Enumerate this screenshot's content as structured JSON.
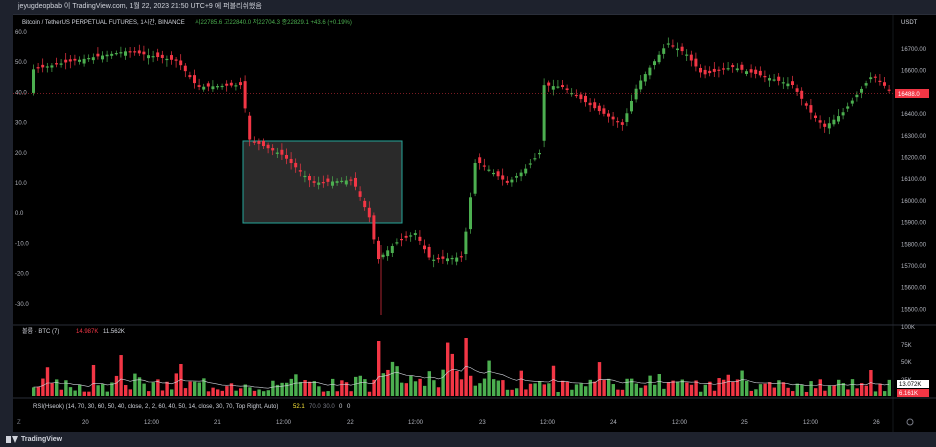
{
  "header": {
    "publish_line": "jeyugdeopbab 이 TradingView.com, 1월 22, 2023 21:50 UTC+9 에 퍼블리쉬했음"
  },
  "legend": {
    "symbol": "Bitcoin / TetherUS PERPETUAL FUTURES, 1시간, BINANCE",
    "ohlc": "시22785.6  고22840.0  저22704.3  종22829.1  +43.6 (+0.19%)"
  },
  "colors": {
    "up": "#4caf50",
    "down": "#f23645",
    "background": "#000000",
    "box_fill": "#4d4d4d",
    "box_border": "#26a69a"
  },
  "price_axis": {
    "currency": "USDT",
    "ticks": [
      "16700.00",
      "16600.00",
      "16500.00",
      "16400.00",
      "16300.00",
      "16200.00",
      "16100.00",
      "16000.00",
      "15900.00",
      "15800.00",
      "15700.00",
      "15600.00",
      "15500.00"
    ],
    "current_price": "16488.0"
  },
  "left_axis": {
    "ticks": [
      "60.0",
      "50.0",
      "40.0",
      "30.0",
      "20.0",
      "10.0",
      "0.0",
      "-10.0",
      "-20.0",
      "-30.0"
    ]
  },
  "volume": {
    "label": "볼륨 · BTC (7)",
    "value_red": "14.987K",
    "value_white": "11.562K",
    "axis_ticks": [
      "100K",
      "75K",
      "50K",
      "25K"
    ],
    "badge_current": "13.072K",
    "badge_avg": "6.161K"
  },
  "rsi": {
    "label": "RSI(Hseok) (14, 70, 30, 60, 50, 40, close, 2, 2, 60, 40, 50, 14, close, 30, 70, Top Right, Auto)",
    "values": [
      "52.1",
      "70.0",
      "30.0",
      "0",
      "0"
    ]
  },
  "time_axis": {
    "labels": [
      "20",
      "12:00",
      "21",
      "12:00",
      "22",
      "12:00",
      "23",
      "12:00",
      "24",
      "12:00",
      "25",
      "12:00",
      "26"
    ]
  },
  "footer": {
    "brand": "TradingView"
  }
}
